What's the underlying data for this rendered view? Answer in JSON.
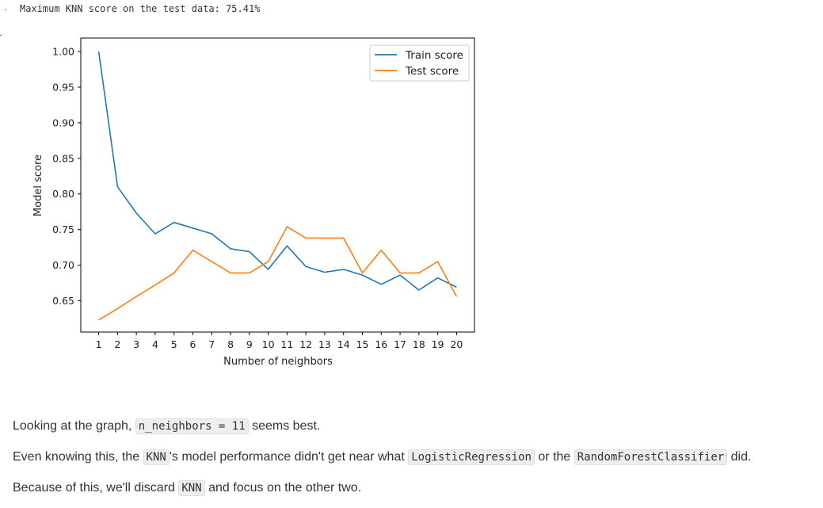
{
  "output": {
    "text": "Maximum KNN score on the test data: 75.41%"
  },
  "chart_data": {
    "type": "line",
    "xlabel": "Number of neighbors",
    "ylabel": "Model score",
    "x": [
      1,
      2,
      3,
      4,
      5,
      6,
      7,
      8,
      9,
      10,
      11,
      12,
      13,
      14,
      15,
      16,
      17,
      18,
      19,
      20
    ],
    "xticks": [
      "1",
      "2",
      "3",
      "4",
      "5",
      "6",
      "7",
      "8",
      "9",
      "10",
      "11",
      "12",
      "13",
      "14",
      "15",
      "16",
      "17",
      "18",
      "19",
      "20"
    ],
    "yticks": [
      "0.65",
      "0.70",
      "0.75",
      "0.80",
      "0.85",
      "0.90",
      "0.95",
      "1.00"
    ],
    "xlim": [
      0.05,
      20.95
    ],
    "ylim": [
      0.606,
      1.019
    ],
    "legend_position": "upper right",
    "grid": false,
    "series": [
      {
        "name": "Train score",
        "color": "#1f77b4",
        "values": [
          1.0,
          0.81,
          0.773,
          0.744,
          0.76,
          0.752,
          0.744,
          0.723,
          0.719,
          0.694,
          0.727,
          0.698,
          0.69,
          0.694,
          0.686,
          0.673,
          0.686,
          0.665,
          0.682,
          0.669
        ]
      },
      {
        "name": "Test score",
        "color": "#ff7f0e",
        "values": [
          0.623,
          0.639,
          0.656,
          0.672,
          0.689,
          0.721,
          0.705,
          0.689,
          0.689,
          0.705,
          0.754,
          0.738,
          0.738,
          0.738,
          0.689,
          0.721,
          0.689,
          0.689,
          0.705,
          0.656
        ]
      }
    ]
  },
  "markdown": {
    "p1": {
      "t1": "Looking at the graph, ",
      "c1": "n_neighbors = 11",
      "t2": " seems best."
    },
    "p2": {
      "t1": "Even knowing this, the ",
      "c1": "KNN",
      "t2": "'s model performance didn't get near what ",
      "c2": "LogisticRegression",
      "t3": " or the ",
      "c3": "RandomForestClassifier",
      "t4": " did."
    },
    "p3": {
      "t1": "Because of this, we'll discard ",
      "c1": "KNN",
      "t2": " and focus on the other two."
    }
  }
}
